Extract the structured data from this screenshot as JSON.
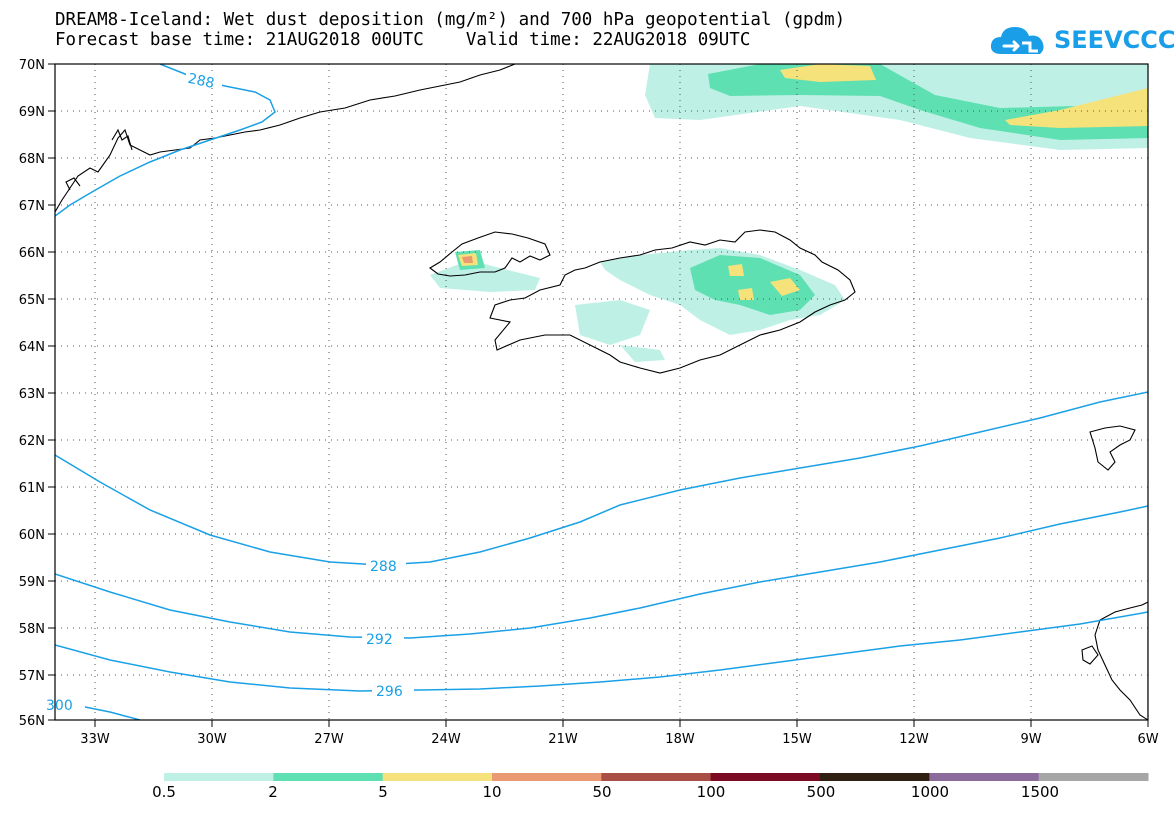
{
  "header": {
    "title": "DREAM8-Iceland: Wet dust deposition (mg/m²) and 700 hPa geopotential (gpdm)",
    "subtitle": "Forecast base time: 21AUG2018 00UTC    Valid time: 22AUG2018 09UTC"
  },
  "logo": {
    "text": "SEEVCCC",
    "icon": "cloud-icon",
    "color": "#1a9ee8"
  },
  "map": {
    "lat_labels": [
      "70N",
      "69N",
      "68N",
      "67N",
      "66N",
      "65N",
      "64N",
      "63N",
      "62N",
      "61N",
      "60N",
      "59N",
      "58N",
      "57N",
      "56N"
    ],
    "lon_labels": [
      "33W",
      "30W",
      "27W",
      "24W",
      "21W",
      "18W",
      "15W",
      "12W",
      "9W",
      "6W"
    ],
    "lon_range": [
      -34.5,
      -6
    ],
    "lat_range": [
      56,
      70
    ],
    "contour_color": "#1aa0e6",
    "contour_labels": [
      "288",
      "288",
      "292",
      "296",
      "300"
    ]
  },
  "legend": {
    "labels": [
      "0.5",
      "2",
      "5",
      "10",
      "50",
      "100",
      "500",
      "1000",
      "1500"
    ],
    "colors": [
      "#bff0e6",
      "#5fe0b2",
      "#f5e27a",
      "#ea9a72",
      "#a84e45",
      "#7c0a23",
      "#302012",
      "#8b6b9c",
      "#a6a6a6"
    ]
  }
}
